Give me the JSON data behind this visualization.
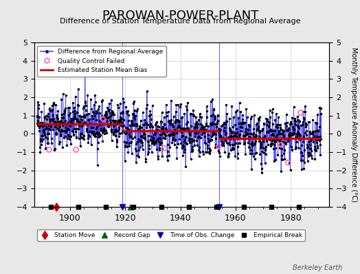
{
  "title": "PAROWAN-POWER-PLANT",
  "subtitle": "Difference of Station Temperature Data from Regional Average",
  "ylabel": "Monthly Temperature Anomaly Difference (°C)",
  "xlabel_years": [
    1900,
    1920,
    1940,
    1960,
    1980
  ],
  "xlim": [
    1887,
    1994
  ],
  "ylim": [
    -4,
    5
  ],
  "yticks": [
    -4,
    -3,
    -2,
    -1,
    0,
    1,
    2,
    3,
    4,
    5
  ],
  "background_color": "#e8e8e8",
  "plot_bg_color": "#ffffff",
  "line_color": "#4444ff",
  "dot_color": "#000000",
  "bias_color": "#cc0000",
  "qc_color": "#ff69b4",
  "station_move_color": "#cc0000",
  "record_gap_color": "#006600",
  "tobs_color": "#0000cc",
  "empirical_color": "#000000",
  "watermark": "Berkeley Earth",
  "seed": 42,
  "start_year": 1888,
  "end_year": 1991,
  "bias_segments": [
    {
      "start": 1888,
      "end": 1919,
      "bias": 0.55
    },
    {
      "start": 1919,
      "end": 1954,
      "bias": 0.15
    },
    {
      "start": 1954,
      "end": 1991,
      "bias": -0.25
    }
  ],
  "vertical_lines": [
    1919,
    1954
  ],
  "station_moves": [
    1895
  ],
  "record_gaps": [
    1922
  ],
  "tobs_changes": [
    1919,
    1954
  ],
  "empirical_breaks": [
    1893,
    1903,
    1913,
    1923,
    1933,
    1943,
    1953,
    1963,
    1973,
    1983
  ]
}
